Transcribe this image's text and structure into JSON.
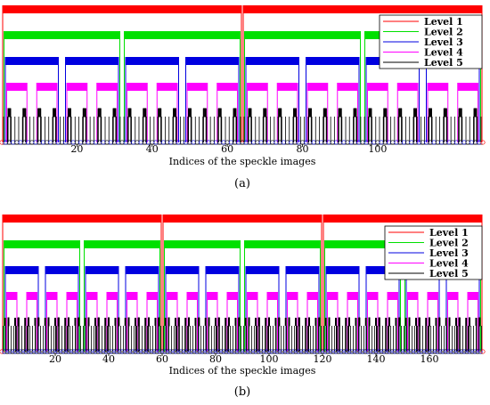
{
  "chart_data": [
    {
      "type": "hierarchical-tree",
      "panel_label": "(a)",
      "xlabel": "Indices of the speckle images",
      "xticks": [
        20,
        40,
        60,
        80,
        100
      ],
      "xlim": [
        0,
        128
      ],
      "leaf_count": 128,
      "branching": 2,
      "levels": [
        {
          "name": "Level 1",
          "color": "#ff0000",
          "nodes": 2
        },
        {
          "name": "Level 2",
          "color": "#00e000",
          "nodes": 4
        },
        {
          "name": "Level 3",
          "color": "#0000e0",
          "nodes": 8
        },
        {
          "name": "Level 4",
          "color": "#ff00ff",
          "nodes": 16
        },
        {
          "name": "Level 5",
          "color": "#000000",
          "nodes": 32
        }
      ],
      "legend": [
        "Level 1",
        "Level 2",
        "Level 3",
        "Level 4",
        "Level 5"
      ],
      "legend_position": "top-right"
    },
    {
      "type": "hierarchical-tree",
      "panel_label": "(b)",
      "xlabel": "Indices of the speckle images",
      "xticks": [
        20,
        40,
        60,
        80,
        100,
        120,
        140,
        160
      ],
      "xlim": [
        0,
        180
      ],
      "leaf_count": 180,
      "branching": 3,
      "levels": [
        {
          "name": "Level 1",
          "color": "#ff0000",
          "nodes": 3
        },
        {
          "name": "Level 2",
          "color": "#00e000",
          "nodes": 6
        },
        {
          "name": "Level 3",
          "color": "#0000e0",
          "nodes": 12
        },
        {
          "name": "Level 4",
          "color": "#ff00ff",
          "nodes": 24
        },
        {
          "name": "Level 5",
          "color": "#000000",
          "nodes": 48
        }
      ],
      "legend": [
        "Level 1",
        "Level 2",
        "Level 3",
        "Level 4",
        "Level 5"
      ],
      "legend_position": "top-right"
    }
  ]
}
